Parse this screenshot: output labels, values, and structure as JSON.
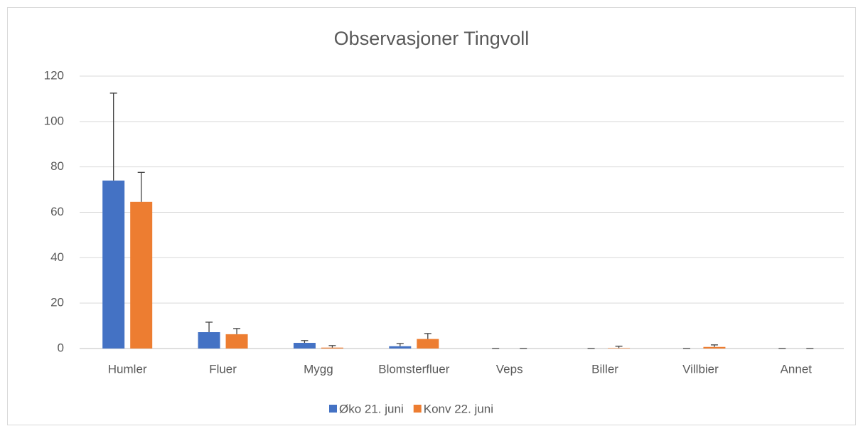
{
  "chart_data": {
    "type": "bar",
    "title": "Observasjoner Tingvoll",
    "categories": [
      "Humler",
      "Fluer",
      "Mygg",
      "Blomsterfluer",
      "Veps",
      "Biller",
      "Villbier",
      "Annet"
    ],
    "series": [
      {
        "name": "Øko 21. juni",
        "color": "#4472c4",
        "values": [
          74,
          7.2,
          2.5,
          1,
          0,
          0,
          0,
          0
        ],
        "errors": [
          38.5,
          4.4,
          1,
          1.2,
          0,
          0,
          0,
          0
        ]
      },
      {
        "name": "Konv 22. juni",
        "color": "#ed7d31",
        "values": [
          64.6,
          6.3,
          0.4,
          4.2,
          0,
          0.2,
          0.7,
          0
        ],
        "errors": [
          13,
          2.5,
          0.9,
          2.4,
          0,
          0.8,
          0.9,
          0
        ]
      }
    ],
    "ylim": [
      0,
      120
    ],
    "yticks": [
      0,
      20,
      40,
      60,
      80,
      100,
      120
    ],
    "grid": true,
    "legend": "bottom"
  }
}
